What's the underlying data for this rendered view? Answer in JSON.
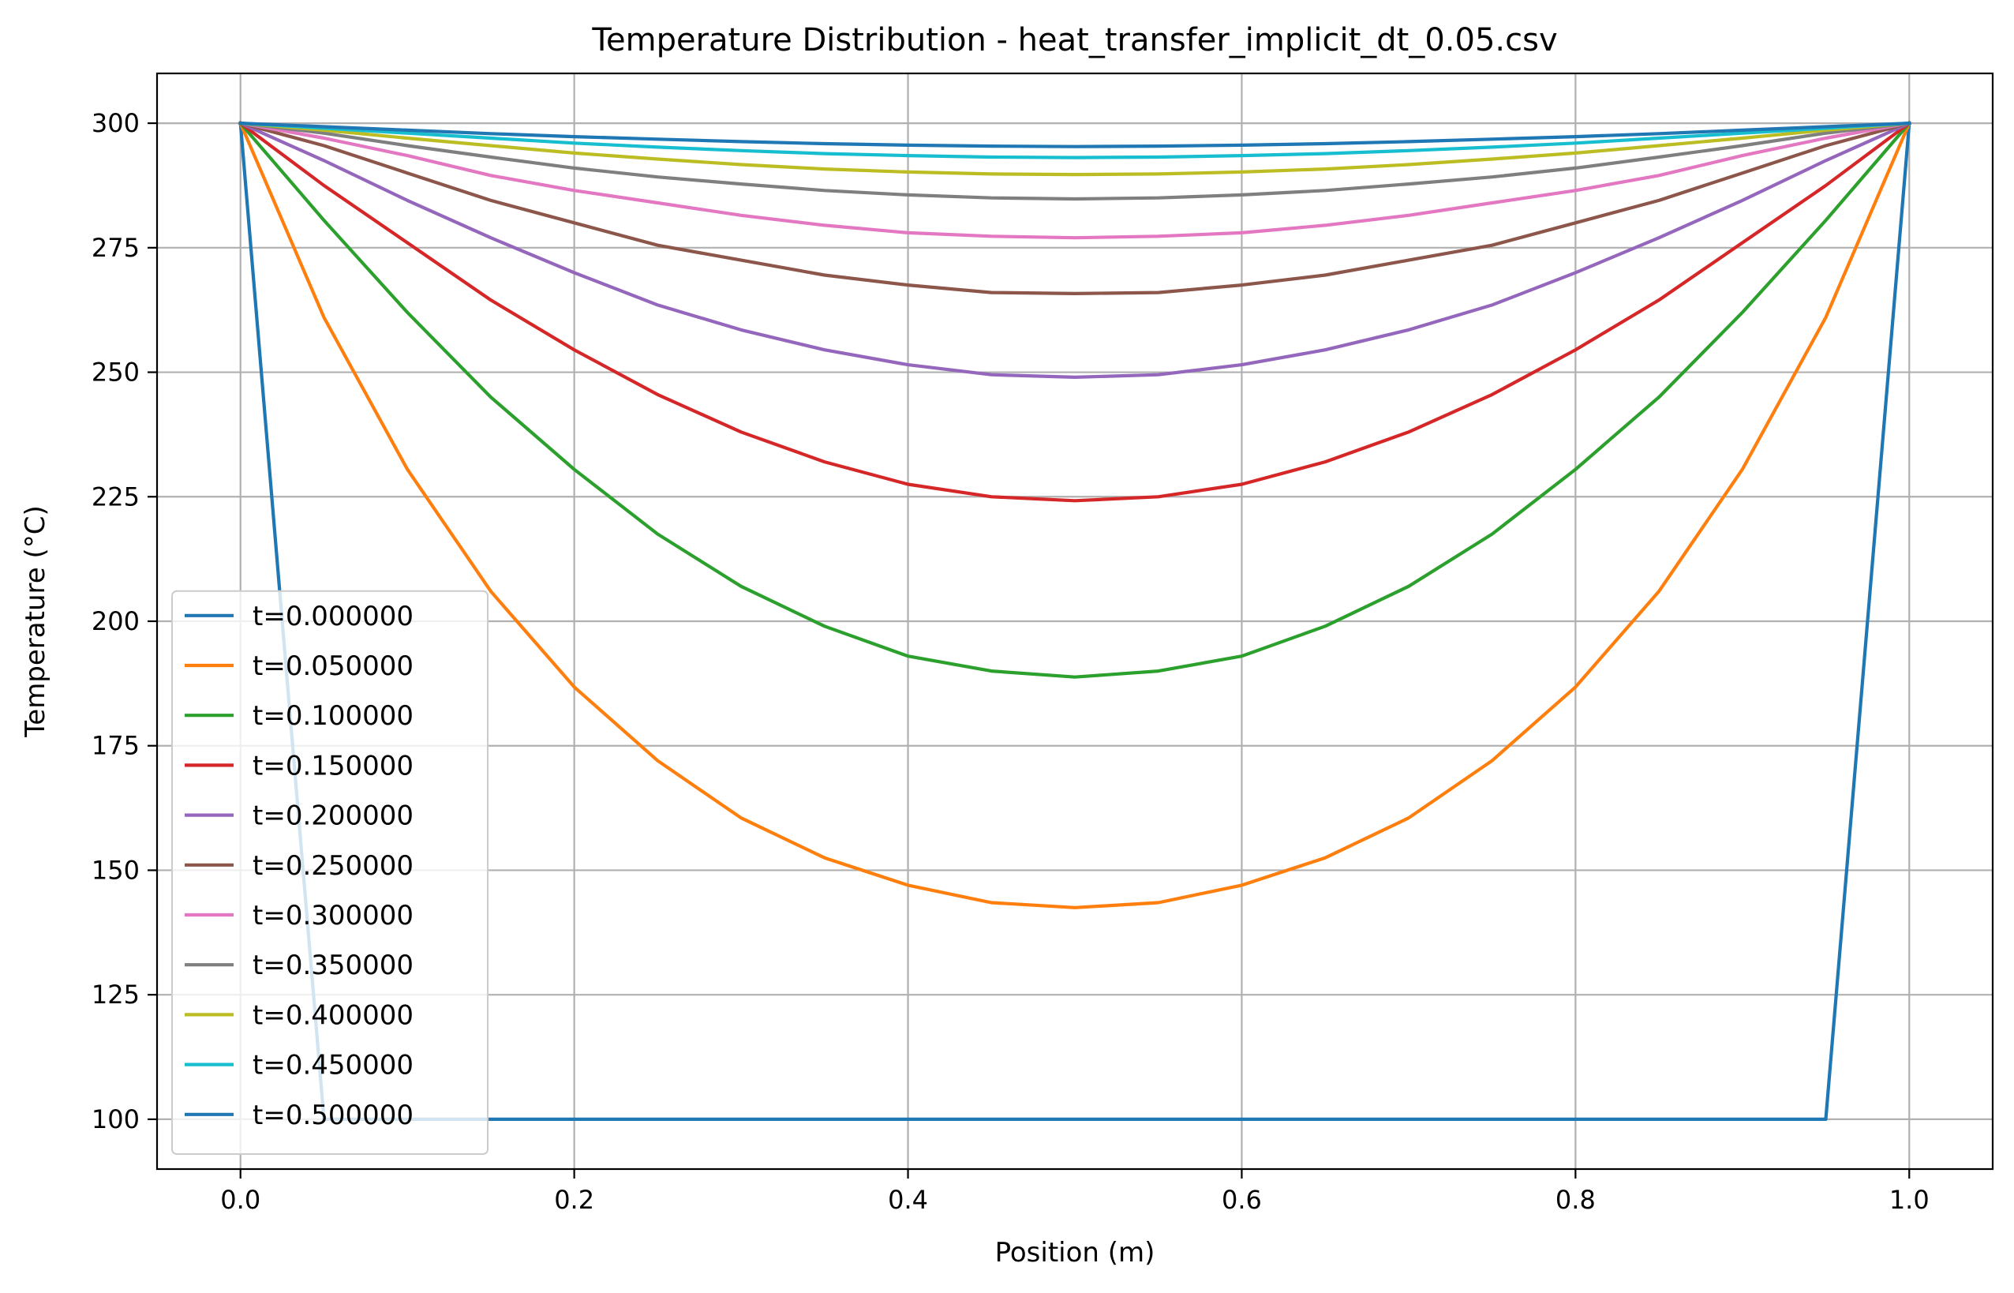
{
  "chart_data": {
    "type": "line",
    "title": "Temperature Distribution - heat_transfer_implicit_dt_0.05.csv",
    "xlabel": "Position (m)",
    "ylabel": "Temperature (°C)",
    "xlim": [
      -0.05,
      1.05
    ],
    "ylim": [
      90,
      310
    ],
    "xticks": [
      0.0,
      0.2,
      0.4,
      0.6,
      0.8,
      1.0
    ],
    "xtick_labels": [
      "0.0",
      "0.2",
      "0.4",
      "0.6",
      "0.8",
      "1.0"
    ],
    "yticks": [
      100,
      125,
      150,
      175,
      200,
      225,
      250,
      275,
      300
    ],
    "ytick_labels": [
      "100",
      "125",
      "150",
      "175",
      "200",
      "225",
      "250",
      "275",
      "300"
    ],
    "grid": true,
    "legend_position": "lower-left",
    "x": [
      0.0,
      0.05,
      0.1,
      0.15,
      0.2,
      0.25,
      0.3,
      0.35,
      0.4,
      0.45,
      0.5,
      0.55,
      0.6,
      0.65,
      0.7,
      0.75,
      0.8,
      0.85,
      0.9,
      0.95,
      1.0
    ],
    "series": [
      {
        "name": "t=0.000000",
        "color": "#1f77b4",
        "values": [
          300,
          100,
          100,
          100,
          100,
          100,
          100,
          100,
          100,
          100,
          100,
          100,
          100,
          100,
          100,
          100,
          100,
          100,
          100,
          100,
          300
        ]
      },
      {
        "name": "t=0.050000",
        "color": "#ff7f0e",
        "values": [
          300,
          261,
          230.5,
          206,
          186.8,
          172,
          160.5,
          152.5,
          147,
          143.5,
          142.5,
          143.5,
          147,
          152.5,
          160.5,
          172,
          186.8,
          206,
          230.5,
          261,
          300
        ]
      },
      {
        "name": "t=0.100000",
        "color": "#2ca02c",
        "values": [
          300,
          280.5,
          262,
          245,
          230.5,
          217.5,
          207,
          199,
          193,
          190,
          188.8,
          190,
          193,
          199,
          207,
          217.5,
          230.5,
          245,
          262,
          280.5,
          300
        ]
      },
      {
        "name": "t=0.150000",
        "color": "#d62728",
        "values": [
          300,
          287.5,
          276,
          264.5,
          254.5,
          245.5,
          238,
          232,
          227.5,
          225,
          224.2,
          225,
          227.5,
          232,
          238,
          245.5,
          254.5,
          264.5,
          276,
          287.5,
          300
        ]
      },
      {
        "name": "t=0.200000",
        "color": "#9467bd",
        "values": [
          300,
          292.5,
          284.5,
          277,
          270,
          263.5,
          258.5,
          254.5,
          251.5,
          249.5,
          249,
          249.5,
          251.5,
          254.5,
          258.5,
          263.5,
          270,
          277,
          284.5,
          292.5,
          300
        ]
      },
      {
        "name": "t=0.250000",
        "color": "#8c564b",
        "values": [
          300,
          295.5,
          290,
          284.5,
          280,
          275.5,
          272.5,
          269.5,
          267.5,
          266,
          265.8,
          266,
          267.5,
          269.5,
          272.5,
          275.5,
          280,
          284.5,
          290,
          295.5,
          300
        ]
      },
      {
        "name": "t=0.300000",
        "color": "#e377c2",
        "values": [
          300,
          297,
          293.5,
          289.5,
          286.5,
          284,
          281.5,
          279.5,
          278,
          277.3,
          277,
          277.3,
          278,
          279.5,
          281.5,
          284,
          286.5,
          289.5,
          293.5,
          297,
          300
        ]
      },
      {
        "name": "t=0.350000",
        "color": "#7f7f7f",
        "values": [
          300,
          298,
          295.5,
          293.2,
          291,
          289.2,
          287.8,
          286.5,
          285.6,
          285,
          284.8,
          285,
          285.6,
          286.5,
          287.8,
          289.2,
          291,
          293.2,
          295.5,
          298,
          300
        ]
      },
      {
        "name": "t=0.400000",
        "color": "#bcbd22",
        "values": [
          300,
          298.6,
          297,
          295.5,
          294,
          292.8,
          291.7,
          290.8,
          290.2,
          289.8,
          289.7,
          289.8,
          290.2,
          290.8,
          291.7,
          292.8,
          294,
          295.5,
          297,
          298.6,
          300
        ]
      },
      {
        "name": "t=0.450000",
        "color": "#17becf",
        "values": [
          300,
          299,
          298,
          297,
          296,
          295.2,
          294.5,
          293.9,
          293.5,
          293.2,
          293.1,
          293.2,
          293.5,
          293.9,
          294.5,
          295.2,
          296,
          297,
          298,
          299,
          300
        ]
      },
      {
        "name": "t=0.500000",
        "color": "#1f77b4",
        "values": [
          300,
          299.3,
          298.6,
          297.9,
          297.3,
          296.8,
          296.3,
          295.9,
          295.6,
          295.4,
          295.3,
          295.4,
          295.6,
          295.9,
          296.3,
          296.8,
          297.3,
          297.9,
          298.6,
          299.3,
          300
        ]
      }
    ]
  }
}
